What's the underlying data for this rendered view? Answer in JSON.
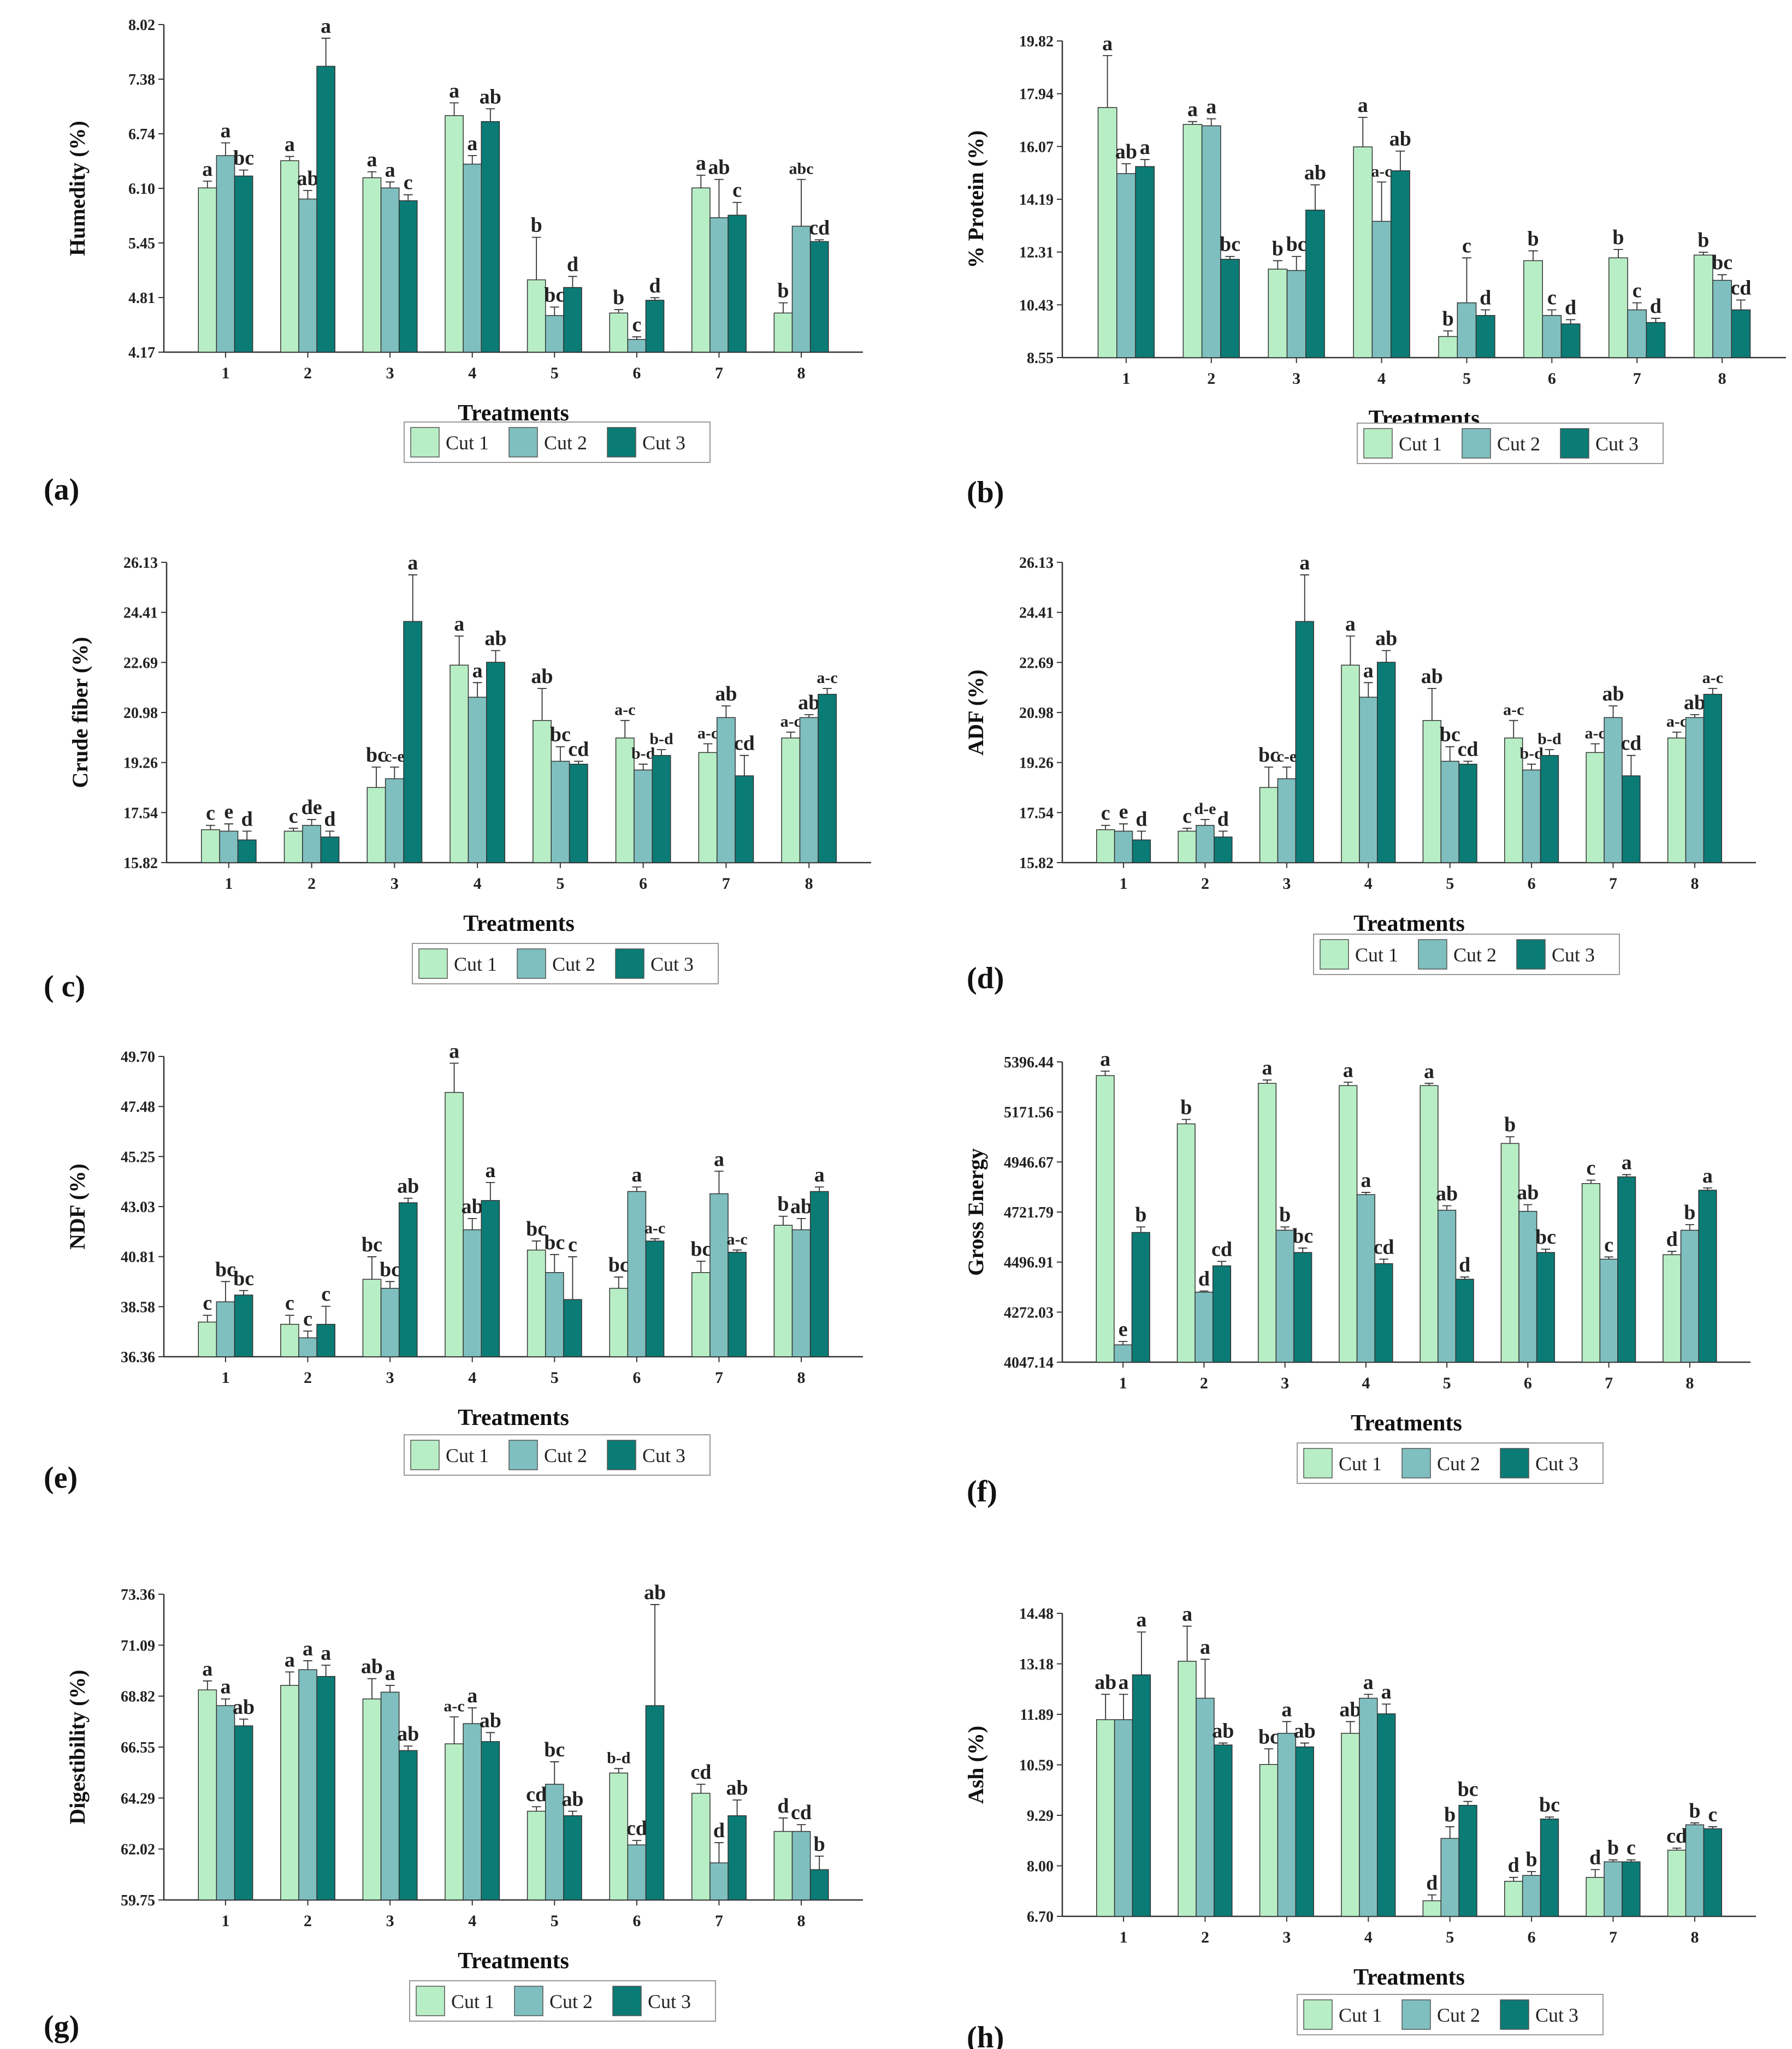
{
  "colors": {
    "cut1": "#b8eec5",
    "cut2": "#7fbfbf",
    "cut3": "#0b7b76"
  },
  "legend_labels": [
    "Cut 1",
    "Cut 2",
    "Cut 3"
  ],
  "chart_data": [
    {
      "id": "a",
      "type": "bar",
      "panel_label": "(a)",
      "ylabel": "Humedity (%)",
      "xlabel": "Treatments",
      "categories": [
        "1",
        "2",
        "3",
        "4",
        "5",
        "6",
        "7",
        "8"
      ],
      "yticks": [
        "4.17",
        "4.81",
        "5.45",
        "6.10",
        "6.74",
        "7.38",
        "8.02"
      ],
      "ylim": [
        4.17,
        8.02
      ],
      "series": [
        {
          "name": "Cut 1",
          "values": [
            6.1,
            6.42,
            6.22,
            6.95,
            5.02,
            4.63,
            6.1,
            4.63
          ],
          "errors": [
            0.08,
            0.05,
            0.07,
            0.15,
            0.5,
            0.04,
            0.15,
            0.12
          ],
          "labels": [
            "a",
            "a",
            "a",
            "a",
            "b",
            "b",
            "a",
            "b"
          ]
        },
        {
          "name": "Cut 2",
          "values": [
            6.48,
            5.97,
            6.1,
            6.38,
            4.6,
            4.32,
            5.75,
            5.65
          ],
          "errors": [
            0.15,
            0.1,
            0.07,
            0.1,
            0.1,
            0.03,
            0.45,
            0.55
          ],
          "labels": [
            "a",
            "ab",
            "a",
            "a",
            "bc",
            "c",
            "ab",
            "abc"
          ]
        },
        {
          "name": "Cut 3",
          "values": [
            6.24,
            7.53,
            5.95,
            6.88,
            4.93,
            4.78,
            5.78,
            5.47
          ],
          "errors": [
            0.07,
            0.33,
            0.07,
            0.15,
            0.13,
            0.03,
            0.15,
            0.02
          ],
          "labels": [
            "bc",
            "a",
            "c",
            "ab",
            "d",
            "d",
            "c",
            "cd"
          ]
        }
      ]
    },
    {
      "id": "b",
      "type": "bar",
      "panel_label": "(b)",
      "ylabel": "% Protein (%)",
      "xlabel": "Treatments",
      "categories": [
        "1",
        "2",
        "3",
        "4",
        "5",
        "6",
        "7",
        "8"
      ],
      "yticks": [
        "8.55",
        "10.43",
        "12.31",
        "14.19",
        "16.07",
        "17.94",
        "19.82"
      ],
      "ylim": [
        8.55,
        19.82
      ],
      "series": [
        {
          "name": "Cut 1",
          "values": [
            17.45,
            16.85,
            11.7,
            16.05,
            9.3,
            12.0,
            12.1,
            12.2
          ],
          "errors": [
            1.85,
            0.1,
            0.3,
            1.05,
            0.2,
            0.35,
            0.3,
            0.1
          ],
          "labels": [
            "a",
            "a",
            "b",
            "a",
            "b",
            "b",
            "b",
            "b"
          ]
        },
        {
          "name": "Cut 2",
          "values": [
            15.1,
            16.8,
            11.65,
            13.4,
            10.5,
            10.05,
            10.25,
            11.3
          ],
          "errors": [
            0.35,
            0.25,
            0.5,
            1.4,
            1.6,
            0.2,
            0.25,
            0.2
          ],
          "labels": [
            "ab",
            "a",
            "bc",
            "a-c",
            "c",
            "c",
            "c",
            "bc"
          ]
        },
        {
          "name": "Cut 3",
          "values": [
            15.35,
            12.05,
            13.8,
            15.2,
            10.05,
            9.75,
            9.8,
            10.25
          ],
          "errors": [
            0.25,
            0.1,
            0.9,
            0.7,
            0.2,
            0.15,
            0.15,
            0.35
          ],
          "labels": [
            "a",
            "bc",
            "ab",
            "ab",
            "d",
            "d",
            "d",
            "cd"
          ]
        }
      ]
    },
    {
      "id": "c",
      "type": "bar",
      "panel_label": "( c)",
      "ylabel": "Crude fiber (%)",
      "xlabel": "Treatments",
      "categories": [
        "1",
        "2",
        "3",
        "4",
        "5",
        "6",
        "7",
        "8"
      ],
      "yticks": [
        "15.82",
        "17.54",
        "19.26",
        "20.98",
        "22.69",
        "24.41",
        "26.13"
      ],
      "ylim": [
        15.82,
        26.13
      ],
      "series": [
        {
          "name": "Cut 1",
          "values": [
            16.95,
            16.9,
            18.4,
            22.6,
            20.7,
            20.1,
            19.6,
            20.1
          ],
          "errors": [
            0.15,
            0.1,
            0.7,
            1.0,
            1.1,
            0.6,
            0.3,
            0.2
          ],
          "labels": [
            "c",
            "c",
            "bc",
            "a",
            "ab",
            "a-c",
            "a-c",
            "a-c"
          ]
        },
        {
          "name": "Cut 2",
          "values": [
            16.9,
            17.1,
            18.7,
            21.5,
            19.3,
            19.0,
            20.8,
            20.8
          ],
          "errors": [
            0.25,
            0.2,
            0.4,
            0.5,
            0.5,
            0.2,
            0.4,
            0.1
          ],
          "labels": [
            "e",
            "de",
            "c-e",
            "a",
            "bc",
            "b-d",
            "ab",
            "ab"
          ]
        },
        {
          "name": "Cut 3",
          "values": [
            16.6,
            16.7,
            24.1,
            22.7,
            19.2,
            19.5,
            18.8,
            21.6
          ],
          "errors": [
            0.3,
            0.2,
            1.6,
            0.4,
            0.1,
            0.2,
            0.7,
            0.2
          ],
          "labels": [
            "d",
            "d",
            "a",
            "ab",
            "cd",
            "b-d",
            "cd",
            "a-c"
          ]
        }
      ]
    },
    {
      "id": "d",
      "type": "bar",
      "panel_label": "(d)",
      "ylabel": "ADF (%)",
      "xlabel": "Treatments",
      "categories": [
        "1",
        "2",
        "3",
        "4",
        "5",
        "6",
        "7",
        "8"
      ],
      "yticks": [
        "15.82",
        "17.54",
        "19.26",
        "20.98",
        "22.69",
        "24.41",
        "26.13"
      ],
      "ylim": [
        15.82,
        26.13
      ],
      "series": [
        {
          "name": "Cut 1",
          "values": [
            16.95,
            16.9,
            18.4,
            22.6,
            20.7,
            20.1,
            19.6,
            20.1
          ],
          "errors": [
            0.15,
            0.1,
            0.7,
            1.0,
            1.1,
            0.6,
            0.3,
            0.2
          ],
          "labels": [
            "c",
            "c",
            "bc",
            "a",
            "ab",
            "a-c",
            "a-c",
            "a-c"
          ]
        },
        {
          "name": "Cut 2",
          "values": [
            16.9,
            17.1,
            18.7,
            21.5,
            19.3,
            19.0,
            20.8,
            20.8
          ],
          "errors": [
            0.25,
            0.2,
            0.4,
            0.5,
            0.5,
            0.2,
            0.4,
            0.1
          ],
          "labels": [
            "e",
            "d-e",
            "c-e",
            "a",
            "bc",
            "b-d",
            "ab",
            "ab"
          ]
        },
        {
          "name": "Cut 3",
          "values": [
            16.6,
            16.7,
            24.1,
            22.7,
            19.2,
            19.5,
            18.8,
            21.6
          ],
          "errors": [
            0.3,
            0.2,
            1.6,
            0.4,
            0.1,
            0.2,
            0.7,
            0.2
          ],
          "labels": [
            "d",
            "d",
            "a",
            "ab",
            "cd",
            "b-d",
            "cd",
            "a-c"
          ]
        }
      ]
    },
    {
      "id": "e",
      "type": "bar",
      "panel_label": "(e)",
      "ylabel": "NDF (%)",
      "xlabel": "Treatments",
      "categories": [
        "1",
        "2",
        "3",
        "4",
        "5",
        "6",
        "7",
        "8"
      ],
      "yticks": [
        "36.36",
        "38.58",
        "40.81",
        "43.03",
        "45.25",
        "47.48",
        "49.70"
      ],
      "ylim": [
        36.36,
        49.7
      ],
      "series": [
        {
          "name": "Cut 1",
          "values": [
            37.9,
            37.8,
            39.8,
            48.1,
            41.1,
            39.4,
            40.1,
            42.2
          ],
          "errors": [
            0.3,
            0.4,
            1.0,
            1.3,
            0.4,
            0.5,
            0.5,
            0.4
          ],
          "labels": [
            "c",
            "c",
            "bc",
            "a",
            "bc",
            "bc",
            "bc",
            "b"
          ]
        },
        {
          "name": "Cut 2",
          "values": [
            38.8,
            37.2,
            39.4,
            42.0,
            40.1,
            43.7,
            43.6,
            42.0
          ],
          "errors": [
            0.9,
            0.3,
            0.3,
            0.5,
            0.8,
            0.2,
            1.0,
            0.5
          ],
          "labels": [
            "bc",
            "c",
            "bc",
            "ab",
            "bc",
            "a",
            "a",
            "ab"
          ]
        },
        {
          "name": "Cut 3",
          "values": [
            39.1,
            37.8,
            43.2,
            43.3,
            38.9,
            41.5,
            41.0,
            43.7
          ],
          "errors": [
            0.2,
            0.8,
            0.2,
            0.8,
            1.9,
            0.1,
            0.1,
            0.2
          ],
          "labels": [
            "bc",
            "c",
            "ab",
            "a",
            "c",
            "a-c",
            "a-c",
            "a"
          ]
        }
      ]
    },
    {
      "id": "f",
      "type": "bar",
      "panel_label": "(f)",
      "ylabel": "Gross Energy",
      "xlabel": "Treatments",
      "categories": [
        "1",
        "2",
        "3",
        "4",
        "5",
        "6",
        "7",
        "8"
      ],
      "yticks": [
        "4047.14",
        "4272.03",
        "4496.91",
        "4721.79",
        "4946.67",
        "5171.56",
        "5396.44"
      ],
      "ylim": [
        4047.14,
        5396.44
      ],
      "series": [
        {
          "name": "Cut 1",
          "values": [
            5335,
            5118,
            5300,
            5290,
            5290,
            5030,
            4850,
            4530
          ],
          "errors": [
            20,
            20,
            15,
            15,
            10,
            30,
            15,
            15
          ],
          "labels": [
            "a",
            "b",
            "a",
            "a",
            "a",
            "b",
            "c",
            "d"
          ]
        },
        {
          "name": "Cut 2",
          "values": [
            4125,
            4362,
            4640,
            4800,
            4730,
            4725,
            4510,
            4640
          ],
          "errors": [
            15,
            5,
            15,
            10,
            20,
            30,
            10,
            25
          ],
          "labels": [
            "e",
            "d",
            "b",
            "a",
            "ab",
            "ab",
            "c",
            "b"
          ]
        },
        {
          "name": "Cut 3",
          "values": [
            4630,
            4480,
            4540,
            4490,
            4420,
            4540,
            4880,
            4820
          ],
          "errors": [
            25,
            20,
            20,
            20,
            10,
            15,
            10,
            10
          ],
          "labels": [
            "b",
            "cd",
            "bc",
            "cd",
            "d",
            "bc",
            "a",
            "a"
          ]
        }
      ]
    },
    {
      "id": "g",
      "type": "bar",
      "panel_label": "(g)",
      "ylabel": "Digestibility (%)",
      "xlabel": "Treatments",
      "categories": [
        "1",
        "2",
        "3",
        "4",
        "5",
        "6",
        "7",
        "8"
      ],
      "yticks": [
        "59.75",
        "62.02",
        "64.29",
        "66.55",
        "68.82",
        "71.09",
        "73.36"
      ],
      "ylim": [
        59.75,
        73.36
      ],
      "series": [
        {
          "name": "Cut 1",
          "values": [
            69.1,
            69.3,
            68.7,
            66.7,
            63.7,
            65.4,
            64.5,
            62.8
          ],
          "errors": [
            0.4,
            0.6,
            0.9,
            1.2,
            0.2,
            0.2,
            0.4,
            0.6
          ],
          "labels": [
            "a",
            "a",
            "ab",
            "a-c",
            "cd",
            "b-d",
            "cd",
            "d"
          ]
        },
        {
          "name": "Cut 2",
          "values": [
            68.4,
            70.0,
            69.0,
            67.6,
            64.9,
            62.2,
            61.4,
            62.8
          ],
          "errors": [
            0.3,
            0.4,
            0.3,
            0.7,
            1.0,
            0.2,
            0.9,
            0.3
          ],
          "labels": [
            "a",
            "a",
            "a",
            "a",
            "bc",
            "cd",
            "d",
            "cd"
          ]
        },
        {
          "name": "Cut 3",
          "values": [
            67.5,
            69.7,
            66.4,
            66.8,
            63.5,
            68.4,
            63.5,
            61.1
          ],
          "errors": [
            0.3,
            0.5,
            0.2,
            0.4,
            0.2,
            4.5,
            0.7,
            0.6
          ],
          "labels": [
            "ab",
            "a",
            "ab",
            "ab",
            "ab",
            "ab",
            "ab",
            "b"
          ]
        }
      ]
    },
    {
      "id": "h",
      "type": "bar",
      "panel_label": "(h)",
      "ylabel": "Ash (%)",
      "xlabel": "Treatments",
      "categories": [
        "1",
        "2",
        "3",
        "4",
        "5",
        "6",
        "7",
        "8"
      ],
      "yticks": [
        "6.70",
        "8.00",
        "9.29",
        "10.59",
        "11.89",
        "13.18",
        "14.48"
      ],
      "ylim": [
        6.7,
        14.48
      ],
      "series": [
        {
          "name": "Cut 1",
          "values": [
            11.75,
            13.25,
            10.6,
            11.4,
            7.1,
            7.6,
            7.7,
            8.4
          ],
          "errors": [
            0.65,
            0.9,
            0.4,
            0.3,
            0.15,
            0.1,
            0.2,
            0.05
          ],
          "labels": [
            "ab",
            "a",
            "bc",
            "ab",
            "d",
            "d",
            "d",
            "cd"
          ]
        },
        {
          "name": "Cut 2",
          "values": [
            11.75,
            12.3,
            11.4,
            12.3,
            8.7,
            7.75,
            8.1,
            9.05
          ],
          "errors": [
            0.65,
            1.0,
            0.3,
            0.1,
            0.3,
            0.1,
            0.05,
            0.05
          ],
          "labels": [
            "a",
            "a",
            "a",
            "a",
            "b",
            "b",
            "b",
            "b"
          ]
        },
        {
          "name": "Cut 3",
          "values": [
            12.9,
            11.1,
            11.05,
            11.9,
            9.55,
            9.2,
            8.1,
            8.95
          ],
          "errors": [
            1.1,
            0.05,
            0.1,
            0.25,
            0.1,
            0.05,
            0.05,
            0.05
          ],
          "labels": [
            "a",
            "ab",
            "ab",
            "a",
            "bc",
            "bc",
            "c",
            "c"
          ]
        }
      ]
    }
  ]
}
